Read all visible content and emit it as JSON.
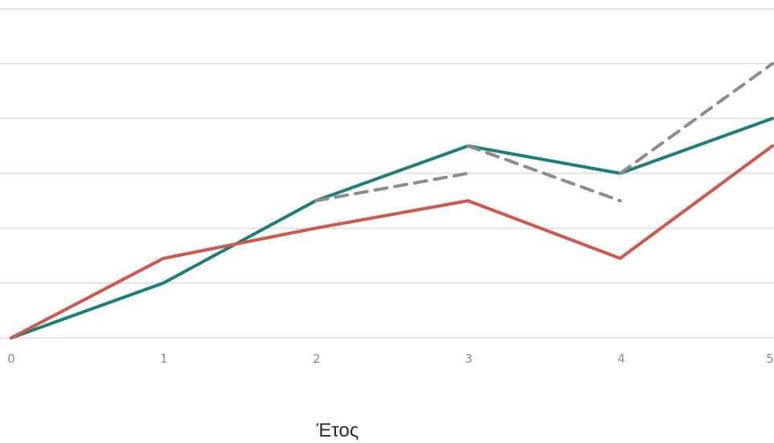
{
  "chart_data": {
    "type": "line",
    "xlabel": "Έτος",
    "ylabel": "",
    "x_ticks": [
      "0",
      "1",
      "2",
      "3",
      "4",
      "5"
    ],
    "xlim": [
      0,
      5
    ],
    "ylim": [
      0,
      6
    ],
    "y_gridlines": [
      0,
      1,
      2,
      3,
      4,
      5,
      6
    ],
    "grid": true,
    "series": [
      {
        "color": "#1a7f7a",
        "style": "solid",
        "points": [
          [
            0,
            0
          ],
          [
            1,
            1
          ],
          [
            2,
            2.5
          ],
          [
            3,
            3.5
          ],
          [
            4,
            3
          ],
          [
            5,
            4
          ]
        ]
      },
      {
        "color": "#d0574a",
        "style": "solid",
        "points": [
          [
            0,
            0
          ],
          [
            1,
            1.45
          ],
          [
            2,
            2
          ],
          [
            3,
            2.5
          ],
          [
            4,
            1.45
          ],
          [
            5,
            3.5
          ]
        ]
      },
      {
        "color": "#8c8c8c",
        "style": "dashed",
        "points": [
          [
            2,
            2.5
          ],
          [
            3,
            3
          ]
        ]
      },
      {
        "color": "#8c8c8c",
        "style": "dashed",
        "points": [
          [
            3,
            3.5
          ],
          [
            4,
            2.5
          ]
        ]
      },
      {
        "color": "#8c8c8c",
        "style": "dashed",
        "points": [
          [
            4,
            3
          ],
          [
            5,
            5
          ]
        ]
      }
    ]
  }
}
